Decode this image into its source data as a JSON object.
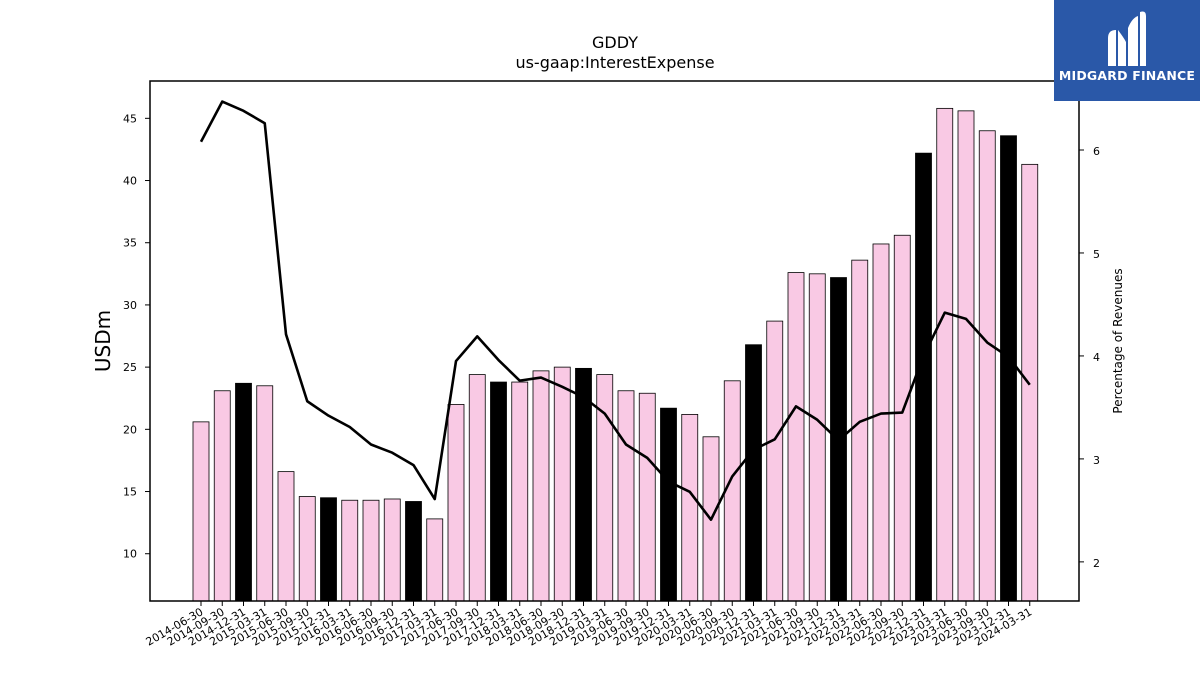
{
  "chart_data": {
    "type": "bar",
    "title": "GDDY",
    "subtitle": "us-gaap:InterestExpense",
    "ylabel": "USDm",
    "y2label": "Percentage of Revenues",
    "ylim": [
      6.2,
      48
    ],
    "y2lim": [
      1.62,
      6.67
    ],
    "yticks": [
      10,
      15,
      20,
      25,
      30,
      35,
      40,
      45
    ],
    "y2ticks": [
      2,
      3,
      4,
      5,
      6
    ],
    "categories": [
      "2014-06-30",
      "2014-09-30",
      "2014-12-31",
      "2015-03-31",
      "2015-06-30",
      "2015-09-30",
      "2015-12-31",
      "2016-03-31",
      "2016-06-30",
      "2016-09-30",
      "2016-12-31",
      "2017-03-31",
      "2017-06-30",
      "2017-09-30",
      "2017-12-31",
      "2018-03-31",
      "2018-06-30",
      "2018-09-30",
      "2018-12-31",
      "2019-03-31",
      "2019-06-30",
      "2019-09-30",
      "2019-12-31",
      "2020-03-31",
      "2020-06-30",
      "2020-09-30",
      "2020-12-31",
      "2021-03-31",
      "2021-06-30",
      "2021-09-30",
      "2021-12-31",
      "2022-03-31",
      "2022-06-30",
      "2022-09-30",
      "2022-12-31",
      "2023-03-31",
      "2023-06-30",
      "2023-09-30",
      "2023-12-31",
      "2024-03-31"
    ],
    "series": [
      {
        "type": "bar",
        "axis": "left",
        "values": [
          20.6,
          23.1,
          23.7,
          23.5,
          16.6,
          14.6,
          14.5,
          14.3,
          14.3,
          14.4,
          14.2,
          12.8,
          22.0,
          24.4,
          23.8,
          23.8,
          24.7,
          25.0,
          24.9,
          24.4,
          23.1,
          22.9,
          21.7,
          21.2,
          19.4,
          23.9,
          26.8,
          28.7,
          32.6,
          32.5,
          32.2,
          33.6,
          34.9,
          35.6,
          42.2,
          45.8,
          45.6,
          44.0,
          43.6,
          41.3
        ],
        "colors": {
          "normal": "#f9c9e4",
          "highlight": "#000000",
          "edge": "#000000"
        },
        "highlight_categories": [
          "2014-12-31",
          "2015-12-31",
          "2016-12-31",
          "2017-12-31",
          "2018-12-31",
          "2019-12-31",
          "2020-12-31",
          "2021-12-31",
          "2022-12-31",
          "2023-12-31"
        ]
      },
      {
        "type": "line",
        "axis": "right",
        "color": "#000000",
        "values": [
          6.08,
          6.47,
          6.38,
          6.26,
          4.21,
          3.56,
          3.42,
          3.31,
          3.14,
          3.06,
          2.94,
          2.61,
          3.95,
          4.19,
          3.96,
          3.76,
          3.79,
          3.7,
          3.6,
          3.44,
          3.14,
          3.01,
          2.78,
          2.68,
          2.41,
          2.83,
          3.09,
          3.19,
          3.51,
          3.38,
          3.18,
          3.36,
          3.44,
          3.45,
          4.0,
          4.42,
          4.36,
          4.13,
          3.99,
          3.72
        ]
      }
    ],
    "grid": false,
    "legend": "none"
  },
  "logo": {
    "text": "MIDGARD FINANCE",
    "background": "#2a58a8"
  }
}
